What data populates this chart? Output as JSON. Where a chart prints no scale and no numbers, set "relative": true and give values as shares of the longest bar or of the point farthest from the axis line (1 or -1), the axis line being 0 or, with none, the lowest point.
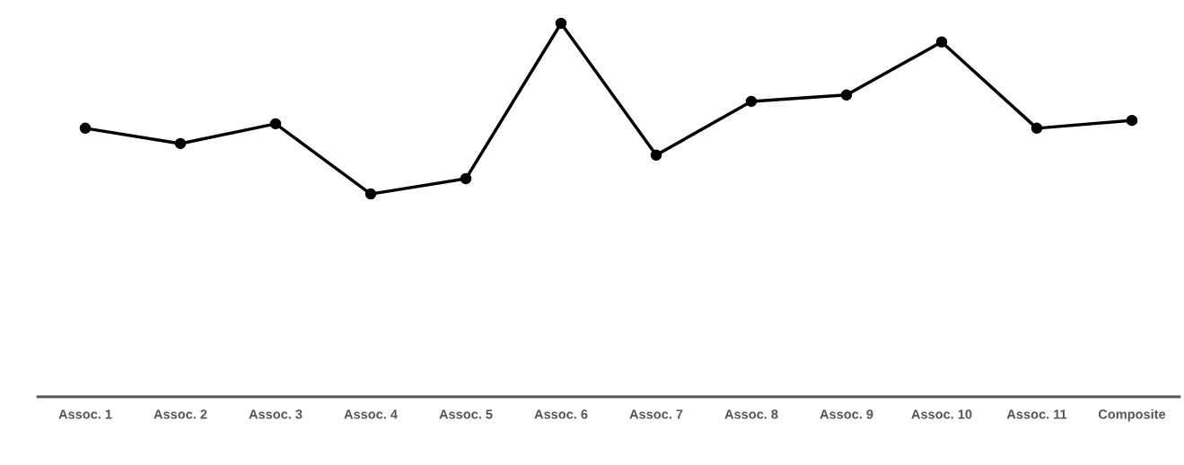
{
  "chart_data": {
    "type": "line",
    "relative": true,
    "categories": [
      "Assoc. 1",
      "Assoc. 2",
      "Assoc. 3",
      "Assoc. 4",
      "Assoc. 5",
      "Assoc. 6",
      "Assoc. 7",
      "Assoc. 8",
      "Assoc. 9",
      "Assoc. 10",
      "Assoc. 11",
      "Composite"
    ],
    "series": [
      {
        "color": "#000000",
        "values": [
          0.719,
          0.678,
          0.731,
          0.543,
          0.584,
          1,
          0.647,
          0.791,
          0.808,
          0.95,
          0.719,
          0.74
        ]
      }
    ],
    "marker": "circle",
    "line_style": "solid"
  }
}
